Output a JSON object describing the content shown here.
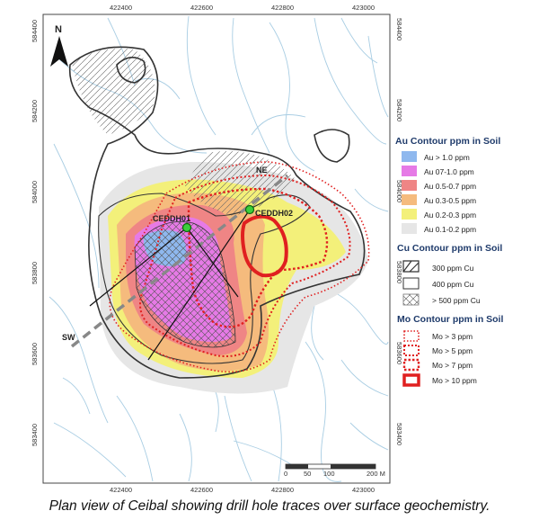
{
  "map": {
    "north_label": "N",
    "x_ticks": [
      "422400",
      "422600",
      "422800",
      "423000"
    ],
    "y_ticks": [
      "584400",
      "584200",
      "584000",
      "583800",
      "583600",
      "583400"
    ],
    "scale_labels": [
      "0",
      "50",
      "100",
      "200 M"
    ],
    "drill_holes": [
      {
        "label": "CEDDH01"
      },
      {
        "label": "CEDDH02"
      }
    ],
    "section_labels": {
      "ne": "NE",
      "sw": "SW"
    }
  },
  "legend": {
    "au_title": "Au Contour ppm in Soil",
    "au_items": [
      {
        "label": "Au > 1.0 ppm",
        "color": "#8fb8ee"
      },
      {
        "label": "Au 07-1.0 ppm",
        "color": "#e67ae6"
      },
      {
        "label": "Au 0.5-0.7 ppm",
        "color": "#ef8585"
      },
      {
        "label": "Au 0.3-0.5 ppm",
        "color": "#f5bb7d"
      },
      {
        "label": "Au 0.2-0.3 ppm",
        "color": "#f3f07a"
      },
      {
        "label": "Au 0.1-0.2 ppm",
        "color": "#e6e6e6"
      }
    ],
    "cu_title": "Cu Contour ppm in Soil",
    "cu_items": [
      {
        "label": "300 ppm Cu"
      },
      {
        "label": "400 ppm Cu"
      },
      {
        "label": "> 500 ppm Cu"
      }
    ],
    "mo_title": "Mo Contour ppm in Soil",
    "mo_items": [
      {
        "label": "Mo > 3 ppm"
      },
      {
        "label": "Mo > 5 ppm"
      },
      {
        "label": "Mo > 7 ppm"
      },
      {
        "label": "Mo > 10 ppm"
      }
    ]
  },
  "caption": "Plan view of Ceibal showing drill hole traces over surface geochemistry."
}
